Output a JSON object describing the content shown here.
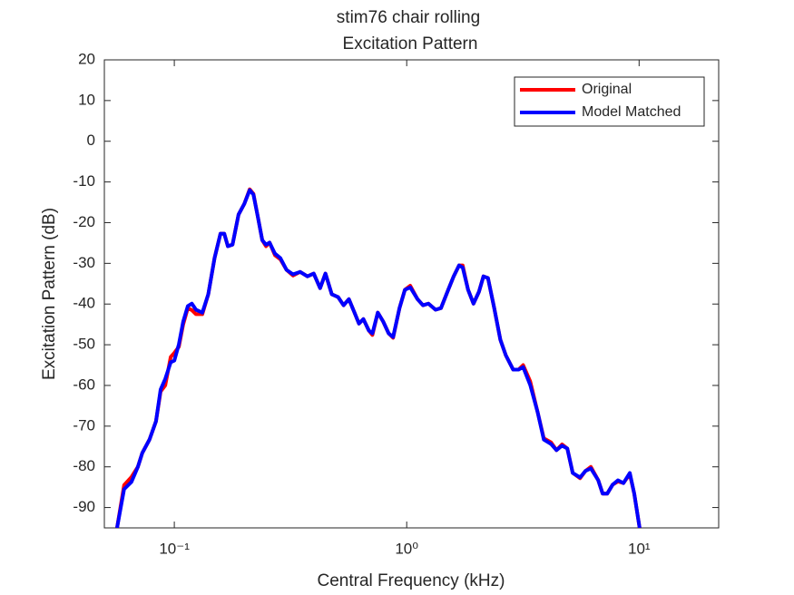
{
  "chart_data": {
    "type": "line",
    "title": "stim76 chair rolling",
    "subtitle": "Excitation Pattern",
    "x_label": "Central Frequency (kHz)",
    "y_label": "Excitation Pattern (dB)",
    "x_scale": "log",
    "xlim": [
      0.05,
      22
    ],
    "xticks": [
      {
        "value": 0.1,
        "label": "10⁻¹"
      },
      {
        "value": 1,
        "label": "10⁰"
      },
      {
        "value": 10,
        "label": "10¹"
      }
    ],
    "ylim": [
      -95,
      20
    ],
    "yticks": [
      20,
      10,
      0,
      -10,
      -20,
      -30,
      -40,
      -50,
      -60,
      -70,
      -80,
      -90
    ],
    "legend_position": "top-right",
    "x": [
      0.0567,
      0.0608,
      0.0654,
      0.0697,
      0.0728,
      0.0782,
      0.0834,
      0.0873,
      0.0914,
      0.0965,
      0.1,
      0.1046,
      0.1092,
      0.1143,
      0.119,
      0.124,
      0.132,
      0.14,
      0.149,
      0.158,
      0.164,
      0.17,
      0.178,
      0.189,
      0.2,
      0.211,
      0.219,
      0.229,
      0.239,
      0.248,
      0.257,
      0.271,
      0.286,
      0.304,
      0.324,
      0.348,
      0.374,
      0.398,
      0.424,
      0.447,
      0.476,
      0.507,
      0.535,
      0.564,
      0.596,
      0.623,
      0.651,
      0.687,
      0.712,
      0.751,
      0.792,
      0.836,
      0.874,
      0.931,
      0.982,
      1.036,
      1.113,
      1.175,
      1.24,
      1.331,
      1.404,
      1.509,
      1.592,
      1.68,
      1.741,
      1.837,
      1.938,
      2.045,
      2.139,
      2.237,
      2.38,
      2.53,
      2.67,
      2.87,
      3.03,
      3.17,
      3.4,
      3.66,
      3.89,
      4.18,
      4.41,
      4.66,
      4.91,
      5.18,
      5.57,
      5.88,
      6.2,
      6.67,
      6.97,
      7.29,
      7.69,
      8.11,
      8.56,
      9.12,
      9.53,
      10.05
    ],
    "series": [
      {
        "name": "Original",
        "color": "#ff0000",
        "values": [
          -95,
          -84.5,
          -82.5,
          -80,
          -76.6,
          -73.3,
          -68.8,
          -61.5,
          -60,
          -53,
          -52,
          -50.5,
          -45,
          -41,
          -41.5,
          -42.5,
          -42.5,
          -37.6,
          -28.7,
          -22.7,
          -22.7,
          -25.8,
          -25.4,
          -18,
          -15.4,
          -11.8,
          -12.9,
          -18.7,
          -24.3,
          -25.8,
          -24.9,
          -28,
          -29,
          -31.6,
          -33,
          -32.1,
          -33.2,
          -32.5,
          -36.1,
          -32.5,
          -37.6,
          -38.3,
          -40.3,
          -38.8,
          -42.1,
          -44.8,
          -43.7,
          -46.5,
          -47.6,
          -42.1,
          -44.3,
          -47.2,
          -48.3,
          -41,
          -36.5,
          -35.5,
          -38.8,
          -40.3,
          -39.9,
          -41.4,
          -41,
          -36.5,
          -33.2,
          -30.5,
          -30.5,
          -36.5,
          -39.9,
          -37,
          -33.2,
          -33.6,
          -41,
          -48.8,
          -52.6,
          -56.1,
          -56.1,
          -55,
          -59,
          -66.6,
          -73,
          -74,
          -75.9,
          -74.5,
          -75.5,
          -81.5,
          -82.8,
          -81,
          -80,
          -83.3,
          -86.6,
          -86.6,
          -84.4,
          -83.6,
          -84,
          -81.8,
          -86.6,
          -95
        ]
      },
      {
        "name": "Model Matched",
        "color": "#0000ff",
        "values": [
          -95,
          -85.5,
          -83.7,
          -80,
          -76.6,
          -73.3,
          -68.8,
          -61,
          -58.4,
          -54.3,
          -53.9,
          -49.9,
          -44.3,
          -40.5,
          -39.9,
          -41.4,
          -42.1,
          -37.6,
          -28.7,
          -22.7,
          -22.7,
          -25.8,
          -25.4,
          -18,
          -15.4,
          -12,
          -13.1,
          -18.7,
          -24.3,
          -25.4,
          -24.9,
          -27.6,
          -28.7,
          -31.6,
          -32.7,
          -32.1,
          -33.2,
          -32.5,
          -36.1,
          -32.5,
          -37.6,
          -38.3,
          -40.3,
          -38.8,
          -42.1,
          -44.8,
          -43.7,
          -46.5,
          -47.2,
          -42.1,
          -44.3,
          -47.2,
          -48.1,
          -41,
          -36.5,
          -35.9,
          -38.8,
          -40.3,
          -39.9,
          -41.4,
          -41,
          -36.5,
          -33.2,
          -30.5,
          -31,
          -36.5,
          -39.9,
          -37,
          -33.2,
          -33.6,
          -41,
          -48.8,
          -52.6,
          -56.1,
          -56.1,
          -55.5,
          -59.9,
          -66.6,
          -73.3,
          -74.4,
          -75.9,
          -74.8,
          -75.5,
          -81.5,
          -82.6,
          -81,
          -80.4,
          -83.3,
          -86.6,
          -86.6,
          -84.4,
          -83.3,
          -84,
          -81.5,
          -86.6,
          -95
        ]
      }
    ]
  }
}
